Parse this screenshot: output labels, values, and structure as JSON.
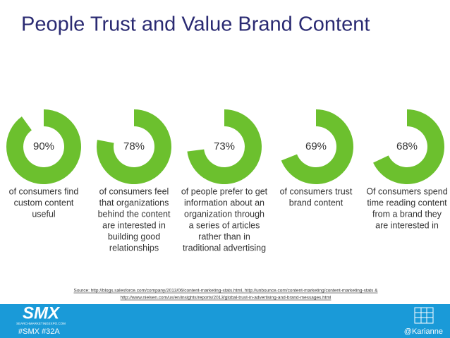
{
  "title": "People Trust and Value Brand Content",
  "chart_data": [
    {
      "type": "donut",
      "values": [
        90
      ],
      "value_labels": [
        "90%"
      ],
      "color": "#6cc02e",
      "caption": [
        "of consumers find",
        "custom content",
        "useful"
      ]
    },
    {
      "type": "donut",
      "values": [
        78
      ],
      "value_labels": [
        "78%"
      ],
      "color": "#6cc02e",
      "caption": [
        "of consumers feel",
        "that organizations",
        "behind the content",
        "are interested in",
        "building good",
        "relationships"
      ]
    },
    {
      "type": "donut",
      "values": [
        73
      ],
      "value_labels": [
        "73%"
      ],
      "color": "#6cc02e",
      "caption": [
        "of people prefer to get",
        "information about an",
        "organization through",
        "a series of articles",
        "rather than in",
        "traditional advertising"
      ]
    },
    {
      "type": "donut",
      "values": [
        69
      ],
      "value_labels": [
        "69%"
      ],
      "color": "#6cc02e",
      "caption": [
        "of consumers trust",
        "brand content"
      ]
    },
    {
      "type": "donut",
      "values": [
        68
      ],
      "value_labels": [
        "68%"
      ],
      "color": "#6cc02e",
      "caption": [
        "Of consumers spend",
        "time reading content",
        "from a brand they",
        "are interested in"
      ]
    }
  ],
  "source": [
    "Source: http://blogs.salesforce.com/company/2013/06/content-marketing-stats.html, http://unbounce.com/content-marketing/content-marketing-stats &",
    "http://www.nielsen.com/us/en/insights/reports/2013/global-trust-in-advertising-and-brand-messages.html"
  ],
  "footer": {
    "logo": "SMX",
    "logo_sub": "SEARCHMARKETINGEXPO.COM",
    "hashtag": "#SMX #32A",
    "handle": "@Karianne"
  }
}
